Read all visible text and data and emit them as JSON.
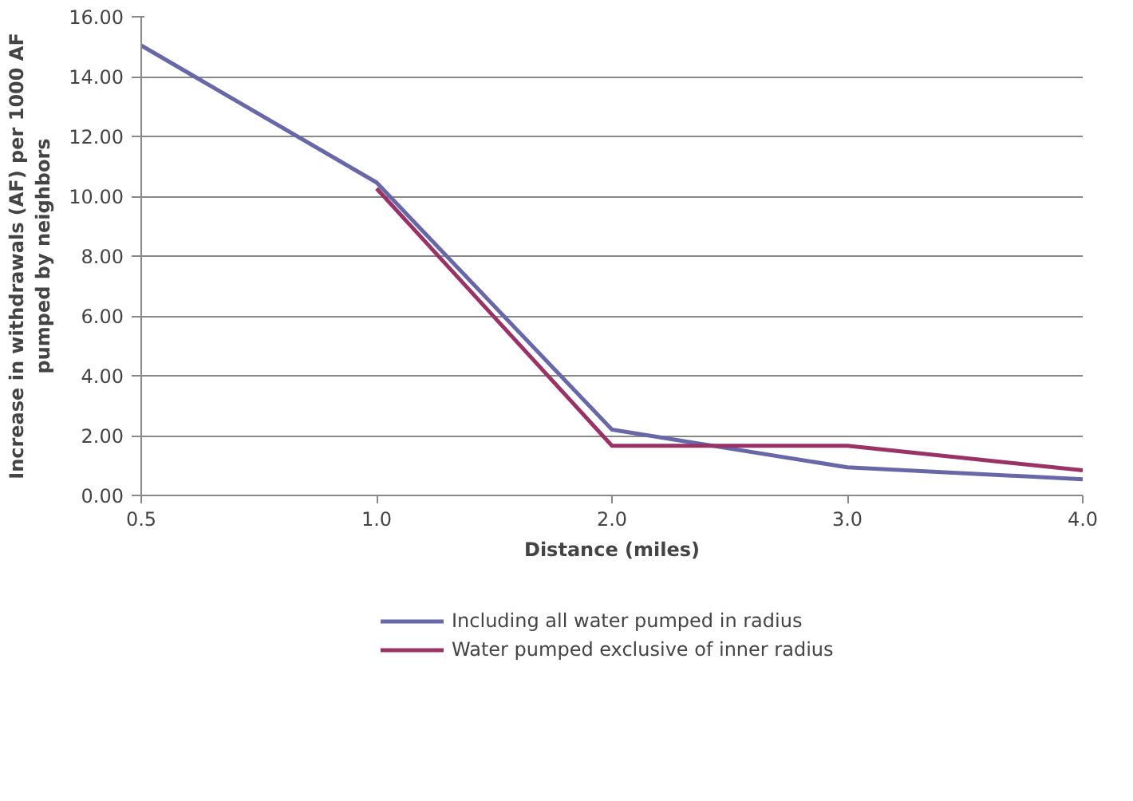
{
  "chart_data": {
    "type": "line",
    "xlabel": "Distance (miles)",
    "ylabel": "Increase in withdrawals (AF) per 1000 AF pumped by neighbors",
    "categories": [
      "0.5",
      "1.0",
      "2.0",
      "3.0",
      "4.0"
    ],
    "series": [
      {
        "name": "Including all water pumped in radius",
        "color": "#6868a8",
        "values": [
          15.04,
          10.46,
          2.2,
          0.94,
          0.54
        ]
      },
      {
        "name": "Water pumped exclusive of inner radius",
        "color": "#993366",
        "values": [
          null,
          10.26,
          1.66,
          1.66,
          0.84
        ]
      }
    ],
    "ylim": [
      0,
      16
    ],
    "yticks": [
      {
        "value": 0,
        "label": "0.00"
      },
      {
        "value": 2,
        "label": "2.00"
      },
      {
        "value": 4,
        "label": "4.00"
      },
      {
        "value": 6,
        "label": "6.00"
      },
      {
        "value": 8,
        "label": "8.00"
      },
      {
        "value": 10,
        "label": "10.00"
      },
      {
        "value": 12,
        "label": "12.00"
      },
      {
        "value": 14,
        "label": "14.00"
      },
      {
        "value": 16,
        "label": "16.00"
      }
    ],
    "grid": "y",
    "legend": "bottom",
    "marker": "none",
    "line_style": "solid"
  }
}
